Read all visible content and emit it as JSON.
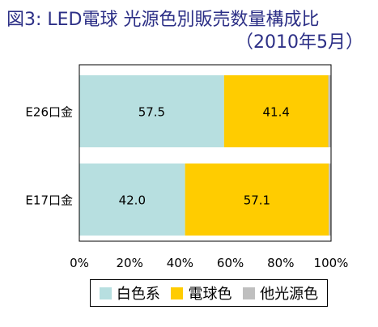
{
  "title": "図3: LED電球  光源色別販売数量構成比",
  "subtitle": "（2010年5月）",
  "chart_data": {
    "type": "bar",
    "orientation": "horizontal",
    "stacked": true,
    "categories": [
      "E26口金",
      "E17口金"
    ],
    "series": [
      {
        "name": "白色系",
        "color": "#b7dfe0",
        "values": [
          57.5,
          42.0
        ]
      },
      {
        "name": "電球色",
        "color": "#ffcc00",
        "values": [
          41.4,
          57.1
        ]
      },
      {
        "name": "他光源色",
        "color": "#bfbfbf",
        "values": [
          1.1,
          0.9
        ]
      }
    ],
    "xlim": [
      0,
      100
    ],
    "xticks": [
      "0%",
      "20%",
      "40%",
      "60%",
      "80%",
      "100%"
    ],
    "data_labels": [
      [
        "57.5",
        "41.4",
        ""
      ],
      [
        "42.0",
        "57.1",
        ""
      ]
    ],
    "legend_position": "bottom",
    "grid": false
  }
}
